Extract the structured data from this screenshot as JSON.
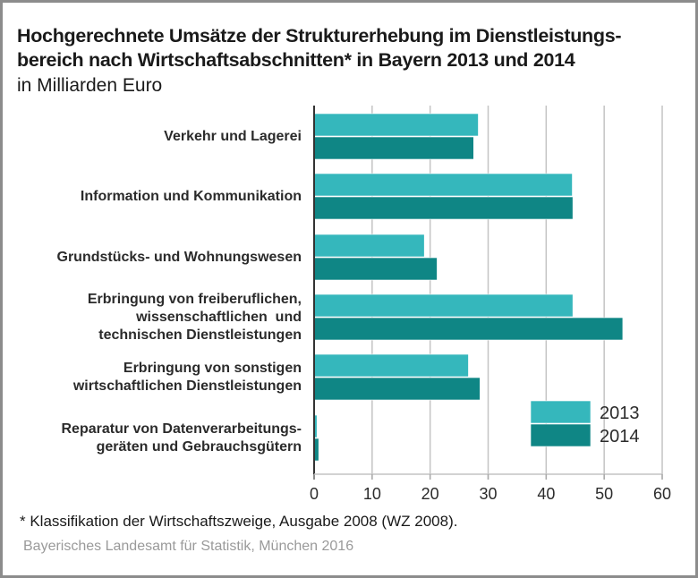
{
  "chart_data": {
    "type": "bar",
    "orientation": "horizontal",
    "title": "Hochgerechnete Umsätze der Strukturerhebung im Dienstleistungs-\nbereich nach Wirtschaftsabschnitten* in Bayern 2013 und 2014",
    "title_lines": [
      "Hochgerechnete Umsätze der Strukturerhebung im Dienstleistungs-",
      "bereich nach Wirtschaftsabschnitten* in Bayern 2013 und 2014"
    ],
    "subtitle": "in Milliarden Euro",
    "categories": [
      "Verkehr und Lagerei",
      "Information und Kommunikation",
      "Grundstücks- und Wohnungswesen",
      "Erbringung von freiberuflichen,\nwissenschaftlichen  und\ntechnischen Dienstleistungen",
      "Erbringung von sonstigen\nwirtschaftlichen Dienstleistungen",
      "Reparatur von Datenverarbeitungs-\ngeräten und Gebrauchsgütern"
    ],
    "series": [
      {
        "name": "2013",
        "color": "#35b7bc",
        "values": [
          28.3,
          44.5,
          19.0,
          44.6,
          26.6,
          0.5
        ]
      },
      {
        "name": "2014",
        "color": "#0f8685",
        "values": [
          27.5,
          44.6,
          21.2,
          53.2,
          28.6,
          0.8
        ]
      }
    ],
    "xlabel": "",
    "ylabel": "",
    "xlim": [
      0,
      60
    ],
    "xticks": [
      0,
      10,
      20,
      30,
      40,
      50,
      60
    ],
    "xtick_labels": [
      "0",
      "10",
      "20",
      "30",
      "40",
      "50",
      "60"
    ],
    "grid": true,
    "legend": {
      "position": "bottom-right",
      "entries": [
        "2013",
        "2014"
      ]
    }
  },
  "footnote": "*  Klassifikation der Wirtschaftszweige, Ausgabe 2008 (WZ 2008).",
  "source": "Bayerisches Landesamt für Statistik, München 2016"
}
